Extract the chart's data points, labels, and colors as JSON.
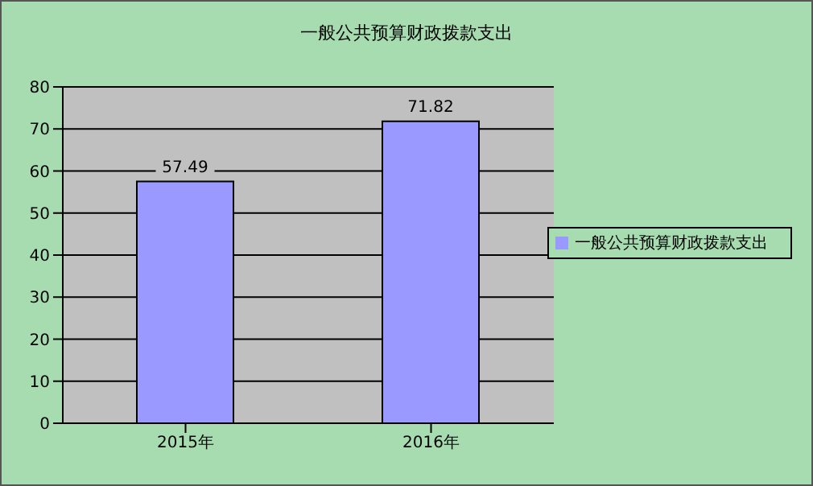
{
  "chart_data": {
    "type": "bar",
    "title": "一般公共预算财政拨款支出",
    "categories": [
      "2015年",
      "2016年"
    ],
    "series": [
      {
        "name": "一般公共预算财政拨款支出",
        "color": "#9999ff",
        "values": [
          57.49,
          71.82
        ]
      }
    ],
    "ylim": [
      0,
      80
    ],
    "yticks": [
      0,
      10,
      20,
      30,
      40,
      50,
      60,
      70,
      80
    ],
    "grid": "y",
    "legend": "right",
    "data_labels": true
  }
}
